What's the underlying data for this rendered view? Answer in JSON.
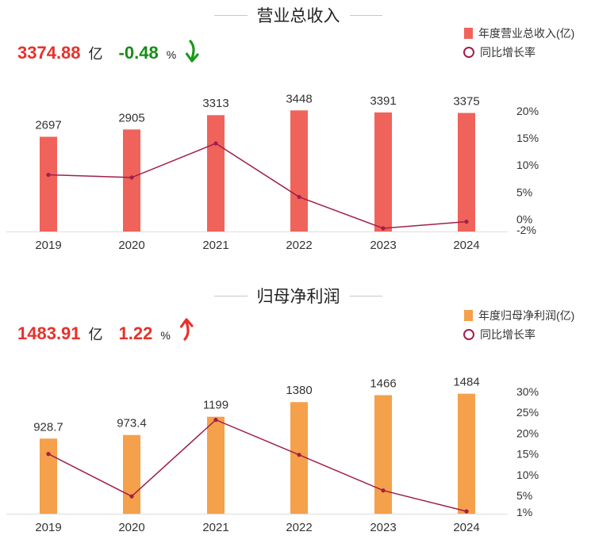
{
  "chart_data": [
    {
      "type": "bar",
      "title": "营业总收入",
      "headline_value": "3374.88",
      "headline_unit": "亿",
      "headline_change": "-0.48",
      "headline_change_unit": "%",
      "headline_direction": "down",
      "categories": [
        "2019",
        "2020",
        "2021",
        "2022",
        "2023",
        "2024"
      ],
      "series": [
        {
          "name": "年度营业总收入(亿)",
          "type": "bar",
          "values": [
            2697,
            2905,
            3313,
            3448,
            3391,
            3375
          ],
          "labels": [
            "2697",
            "2905",
            "3313",
            "3448",
            "3391",
            "3375"
          ],
          "color": "#f0635a"
        },
        {
          "name": "同比增长率",
          "type": "line",
          "values": [
            8.2,
            7.7,
            14.0,
            4.1,
            -1.7,
            -0.48
          ],
          "color": "#a0204a"
        }
      ],
      "right_axis": {
        "ticks": [
          "20%",
          "15%",
          "10%",
          "5%",
          "0%",
          "-2%"
        ],
        "ylim": [
          -2,
          20
        ]
      },
      "legend_position": "top-right",
      "colors": {
        "value": "#e8312b",
        "change": "#1a8a1a",
        "arrow": "#1a9a1a"
      }
    },
    {
      "type": "bar",
      "title": "归母净利润",
      "headline_value": "1483.91",
      "headline_unit": "亿",
      "headline_change": "1.22",
      "headline_change_unit": "%",
      "headline_direction": "up",
      "categories": [
        "2019",
        "2020",
        "2021",
        "2022",
        "2023",
        "2024"
      ],
      "series": [
        {
          "name": "年度归母净利润(亿)",
          "type": "bar",
          "values": [
            928.7,
            973.4,
            1199,
            1380,
            1466,
            1484
          ],
          "labels": [
            "928.7",
            "973.4",
            "1199",
            "1380",
            "1466",
            "1484"
          ],
          "color": "#f5a04a"
        },
        {
          "name": "同比增长率",
          "type": "line",
          "values": [
            15.0,
            4.8,
            23.2,
            14.8,
            6.2,
            1.2
          ],
          "color": "#a0204a"
        }
      ],
      "right_axis": {
        "ticks": [
          "30%",
          "25%",
          "20%",
          "15%",
          "10%",
          "5%",
          "1%"
        ],
        "ylim": [
          1,
          30
        ]
      },
      "legend_position": "top-right",
      "colors": {
        "value": "#e8312b",
        "change": "#e8312b",
        "arrow": "#e8312b"
      }
    }
  ]
}
